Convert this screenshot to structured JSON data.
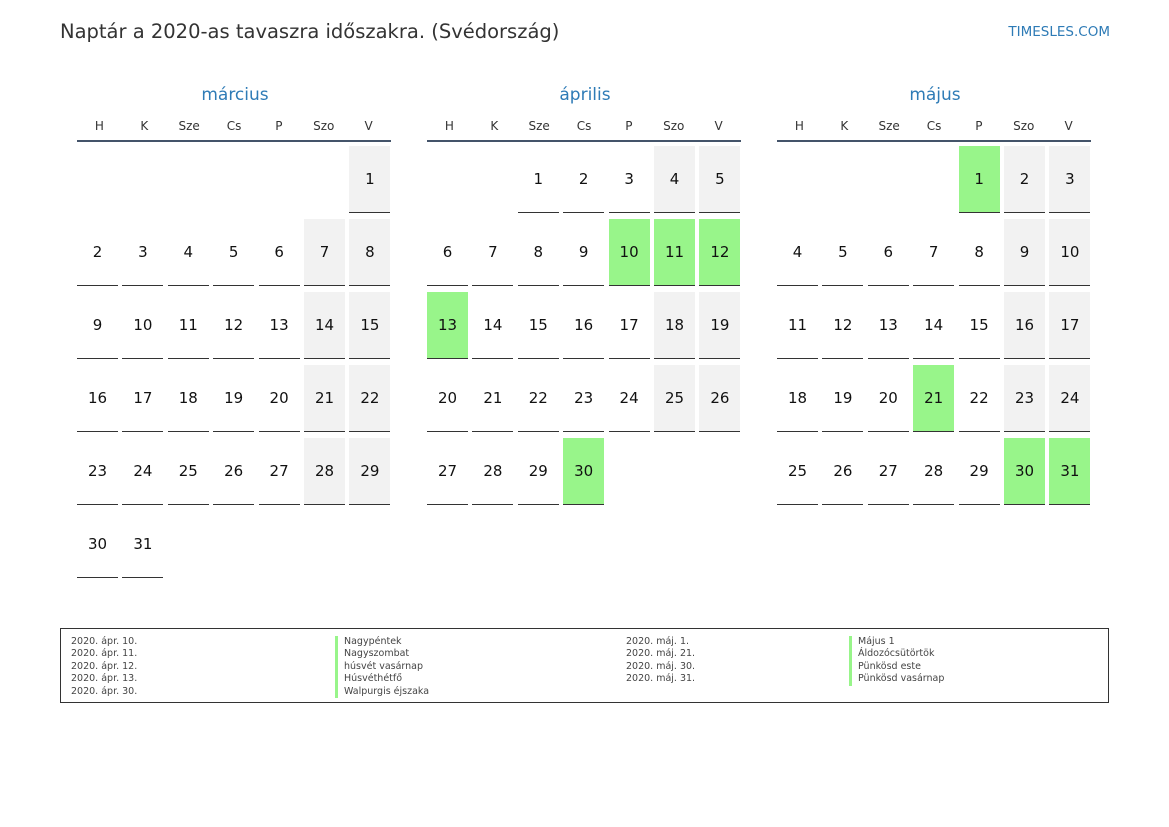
{
  "header": {
    "title": "Naptár a 2020-as tavaszra időszakra. (Svédország)",
    "site": "TIMESLES.COM"
  },
  "weekdays": [
    "H",
    "K",
    "Sze",
    "Cs",
    "P",
    "Szo",
    "V"
  ],
  "months": [
    {
      "name": "március",
      "start_offset": 6,
      "days": 31,
      "holidays": []
    },
    {
      "name": "április",
      "start_offset": 2,
      "days": 30,
      "holidays": [
        10,
        11,
        12,
        13,
        30
      ]
    },
    {
      "name": "május",
      "start_offset": 4,
      "days": 31,
      "holidays": [
        1,
        21,
        30,
        31
      ]
    }
  ],
  "legend": {
    "left": [
      {
        "date": "2020. ápr. 10.",
        "name": "Nagypéntek"
      },
      {
        "date": "2020. ápr. 11.",
        "name": "Nagyszombat"
      },
      {
        "date": "2020. ápr. 12.",
        "name": "húsvét vasárnap"
      },
      {
        "date": "2020. ápr. 13.",
        "name": "Húsvéthétfő"
      },
      {
        "date": "2020. ápr. 30.",
        "name": "Walpurgis éjszaka"
      }
    ],
    "right": [
      {
        "date": "2020. máj. 1.",
        "name": "Május 1"
      },
      {
        "date": "2020. máj. 21.",
        "name": "Áldozócsütörtök"
      },
      {
        "date": "2020. máj. 30.",
        "name": "Pünkösd este"
      },
      {
        "date": "2020. máj. 31.",
        "name": "Pünkösd vasárnap"
      }
    ]
  },
  "colors": {
    "holiday": "#98f58a",
    "weekend": "#f2f2f2",
    "accent": "#2e7bb6"
  }
}
